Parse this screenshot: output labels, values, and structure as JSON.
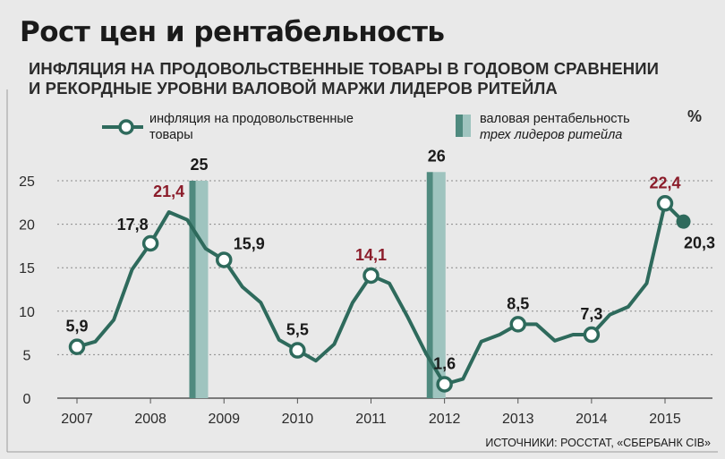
{
  "header": {
    "title": "Рост цен и рентабельность",
    "subtitle_line1": "ИНФЛЯЦИЯ НА ПРОДОВОЛЬСТВЕННЫЕ ТОВАРЫ В ГОДОВОМ СРАВНЕНИИ",
    "subtitle_line2": "И РЕКОРДНЫЕ УРОВНИ ВАЛОВОЙ МАРЖИ ЛИДЕРОВ РИТЕЙЛА"
  },
  "legend": {
    "line_label_1": "инфляция на продовольственные",
    "line_label_2": "товары",
    "bar_label_1": "валовая рентабельность",
    "bar_label_2": "трех лидеров ритейла",
    "unit": "%"
  },
  "source": "ИСТОЧНИКИ: РОССТАТ, «СБЕРБАНК CIB»",
  "colors": {
    "line": "#2e6a5c",
    "bar_front": "#9fc4bf",
    "bar_side": "#4f8a7f",
    "label_dark": "#1a1a1a",
    "label_red": "#8b1c2a",
    "grid": "#8a8a8a",
    "background": "#e9e9e9"
  },
  "chart_data": {
    "type": "line",
    "title": "Рост цен и рентабельность",
    "xlabel": "",
    "ylabel": "%",
    "xlim": [
      2007,
      2015.4
    ],
    "ylim": [
      0,
      25
    ],
    "yticks": [
      0,
      5,
      10,
      15,
      20,
      25
    ],
    "xticks": [
      "2007",
      "2008",
      "2009",
      "2010",
      "2011",
      "2012",
      "2013",
      "2014",
      "2015"
    ],
    "grid": true,
    "legend_position": "top",
    "series": [
      {
        "name": "инфляция на продовольственные товары",
        "kind": "line",
        "x": [
          2007.0,
          2007.25,
          2007.5,
          2007.75,
          2008.0,
          2008.25,
          2008.5,
          2008.75,
          2009.0,
          2009.25,
          2009.5,
          2009.75,
          2010.0,
          2010.25,
          2010.5,
          2010.75,
          2011.0,
          2011.25,
          2011.5,
          2011.75,
          2012.0,
          2012.25,
          2012.5,
          2012.75,
          2013.0,
          2013.25,
          2013.5,
          2013.75,
          2014.0,
          2014.25,
          2014.5,
          2014.75,
          2015.0,
          2015.25
        ],
        "y": [
          5.9,
          6.5,
          9.0,
          14.8,
          17.8,
          21.4,
          20.5,
          17.2,
          15.9,
          12.8,
          11.0,
          6.7,
          5.5,
          4.3,
          6.2,
          11.0,
          14.1,
          13.2,
          9.3,
          5.1,
          1.6,
          2.2,
          6.5,
          7.3,
          8.5,
          8.5,
          6.6,
          7.3,
          7.3,
          9.6,
          10.5,
          13.2,
          22.4,
          20.3
        ]
      },
      {
        "name": "валовая рентабельность трех лидеров ритейла",
        "kind": "bar",
        "x": [
          2008.65,
          2011.88
        ],
        "y": [
          25,
          26
        ]
      }
    ],
    "annotations": [
      {
        "x": 2007.0,
        "y": 5.9,
        "text": "5,9",
        "color": "dark",
        "pos": "above"
      },
      {
        "x": 2008.0,
        "y": 17.8,
        "text": "17,8",
        "color": "dark",
        "pos": "above-left"
      },
      {
        "x": 2008.25,
        "y": 21.4,
        "text": "21,4",
        "color": "red",
        "pos": "above"
      },
      {
        "x": 2009.0,
        "y": 15.9,
        "text": "15,9",
        "color": "dark",
        "pos": "above-right"
      },
      {
        "x": 2010.0,
        "y": 5.5,
        "text": "5,5",
        "color": "dark",
        "pos": "above"
      },
      {
        "x": 2011.0,
        "y": 14.1,
        "text": "14,1",
        "color": "red",
        "pos": "above"
      },
      {
        "x": 2012.0,
        "y": 1.6,
        "text": "1,6",
        "color": "dark",
        "pos": "above"
      },
      {
        "x": 2013.0,
        "y": 8.5,
        "text": "8,5",
        "color": "dark",
        "pos": "above"
      },
      {
        "x": 2014.0,
        "y": 7.3,
        "text": "7,3",
        "color": "dark",
        "pos": "above"
      },
      {
        "x": 2015.0,
        "y": 22.4,
        "text": "22,4",
        "color": "red",
        "pos": "above"
      },
      {
        "x": 2015.25,
        "y": 20.3,
        "text": "20,3",
        "color": "dark",
        "pos": "below-right"
      },
      {
        "x": 2008.65,
        "y": 25,
        "text": "25",
        "color": "dark",
        "pos": "bar-top"
      },
      {
        "x": 2011.88,
        "y": 26,
        "text": "26",
        "color": "dark",
        "pos": "bar-top"
      }
    ]
  }
}
